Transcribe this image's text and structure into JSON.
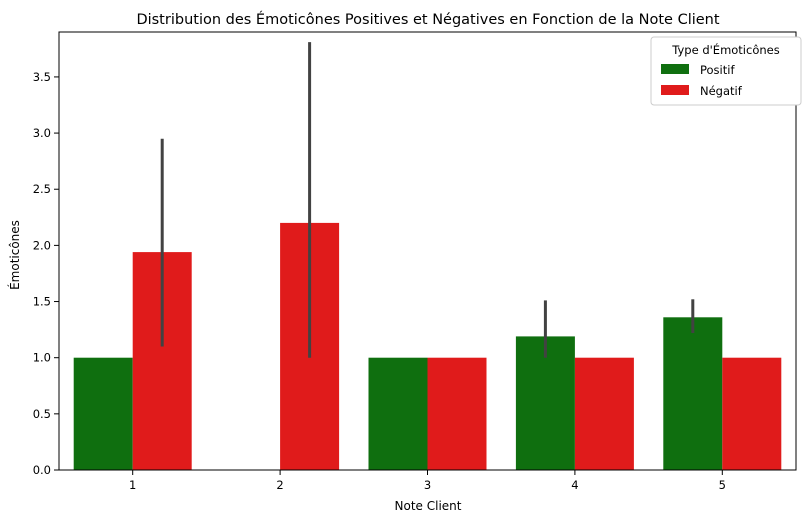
{
  "chart_data": {
    "type": "bar",
    "title": "Distribution des Émoticônes Positives et Négatives en Fonction de la Note Client",
    "xlabel": "Note Client",
    "ylabel": "Émoticônes",
    "categories": [
      "1",
      "2",
      "3",
      "4",
      "5"
    ],
    "ylim": [
      0,
      3.9
    ],
    "yticks": [
      "0.0",
      "0.5",
      "1.0",
      "1.5",
      "2.0",
      "2.5",
      "3.0",
      "3.5"
    ],
    "legend": {
      "title": "Type d'Émoticônes",
      "position": "top-right"
    },
    "series": [
      {
        "name": "Positif",
        "color": "#0f6f0f",
        "values": [
          1.0,
          null,
          1.0,
          1.19,
          1.36
        ],
        "err_low": [
          null,
          null,
          null,
          1.0,
          1.22
        ],
        "err_high": [
          null,
          null,
          null,
          1.51,
          1.52
        ]
      },
      {
        "name": "Négatif",
        "color": "#e01b1b",
        "values": [
          1.94,
          2.2,
          1.0,
          1.0,
          1.0
        ],
        "err_low": [
          1.1,
          1.0,
          null,
          null,
          null
        ],
        "err_high": [
          2.95,
          3.81,
          null,
          null,
          null
        ]
      }
    ]
  }
}
